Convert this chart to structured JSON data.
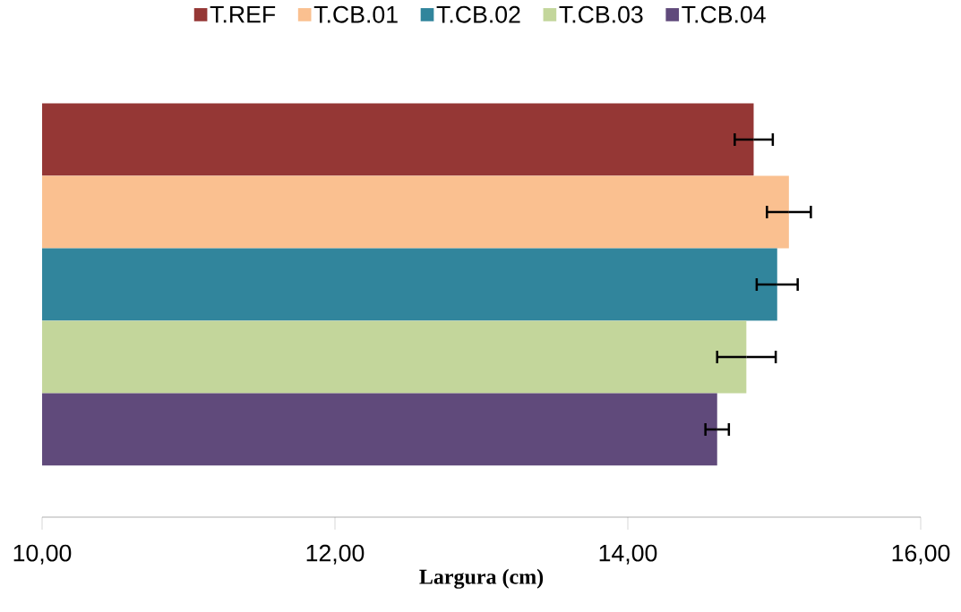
{
  "chart_data": {
    "type": "bar",
    "orientation": "horizontal",
    "xlabel": "Largura (cm)",
    "categories": [
      null
    ],
    "series": [
      {
        "name": "T.REF",
        "color": "#953735",
        "values": [
          14.86
        ],
        "errors": [
          0.13
        ]
      },
      {
        "name": "T.CB.01",
        "color": "#FAC090",
        "values": [
          15.1
        ],
        "errors": [
          0.15
        ]
      },
      {
        "name": "T.CB.02",
        "color": "#31859C",
        "values": [
          15.02
        ],
        "errors": [
          0.14
        ]
      },
      {
        "name": "T.CB.03",
        "color": "#C3D69B",
        "values": [
          14.81
        ],
        "errors": [
          0.2
        ]
      },
      {
        "name": "T.CB.04",
        "color": "#604A7B",
        "values": [
          14.61
        ],
        "errors": [
          0.08
        ]
      }
    ],
    "xlim": [
      10,
      16
    ],
    "xticks": [
      {
        "value": 10,
        "label": "10,00"
      },
      {
        "value": 12,
        "label": "12,00"
      },
      {
        "value": 14,
        "label": "14,00"
      },
      {
        "value": 16,
        "label": "16,00"
      }
    ],
    "legend": "top"
  }
}
